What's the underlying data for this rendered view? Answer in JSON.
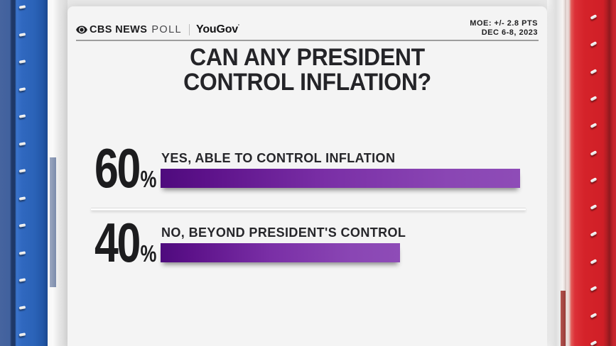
{
  "header": {
    "brand": "CBS NEWS",
    "brand_suffix": "POLL",
    "partner": "YouGov",
    "partner_mark": "'",
    "moe_line1": "MOE: +/- 2.8 PTS",
    "moe_line2": "DEC 6-8, 2023"
  },
  "title": {
    "line1": "CAN ANY PRESIDENT",
    "line2": "CONTROL INFLATION?"
  },
  "chart_data": {
    "type": "bar",
    "orientation": "horizontal",
    "title": "CAN ANY PRESIDENT CONTROL INFLATION?",
    "categories": [
      "YES, ABLE TO CONTROL INFLATION",
      "NO, BEYOND PRESIDENT'S CONTROL"
    ],
    "values": [
      60,
      40
    ],
    "unit": "%",
    "xlim": [
      0,
      60
    ],
    "grid": false,
    "legend": false,
    "data_labels": [
      "60%",
      "40%"
    ],
    "source": "CBS NEWS POLL | YouGov",
    "margin_of_error": "+/- 2.8 PTS",
    "dates": "DEC 6-8, 2023"
  },
  "bars": [
    {
      "value": "60",
      "unit": "%",
      "label": "YES, ABLE TO CONTROL INFLATION",
      "pct": 60
    },
    {
      "value": "40",
      "unit": "%",
      "label": "NO, BEYOND PRESIDENT'S CONTROL",
      "pct": 40
    }
  ],
  "colors": {
    "bar_gradient_start": "#4e0b7d",
    "bar_gradient_end": "#8e4cb7",
    "stage_left_blue": "#2d68c0",
    "stage_right_red": "#d5232a",
    "card_bg": "#f4f4f4",
    "text_dark": "#212123"
  }
}
